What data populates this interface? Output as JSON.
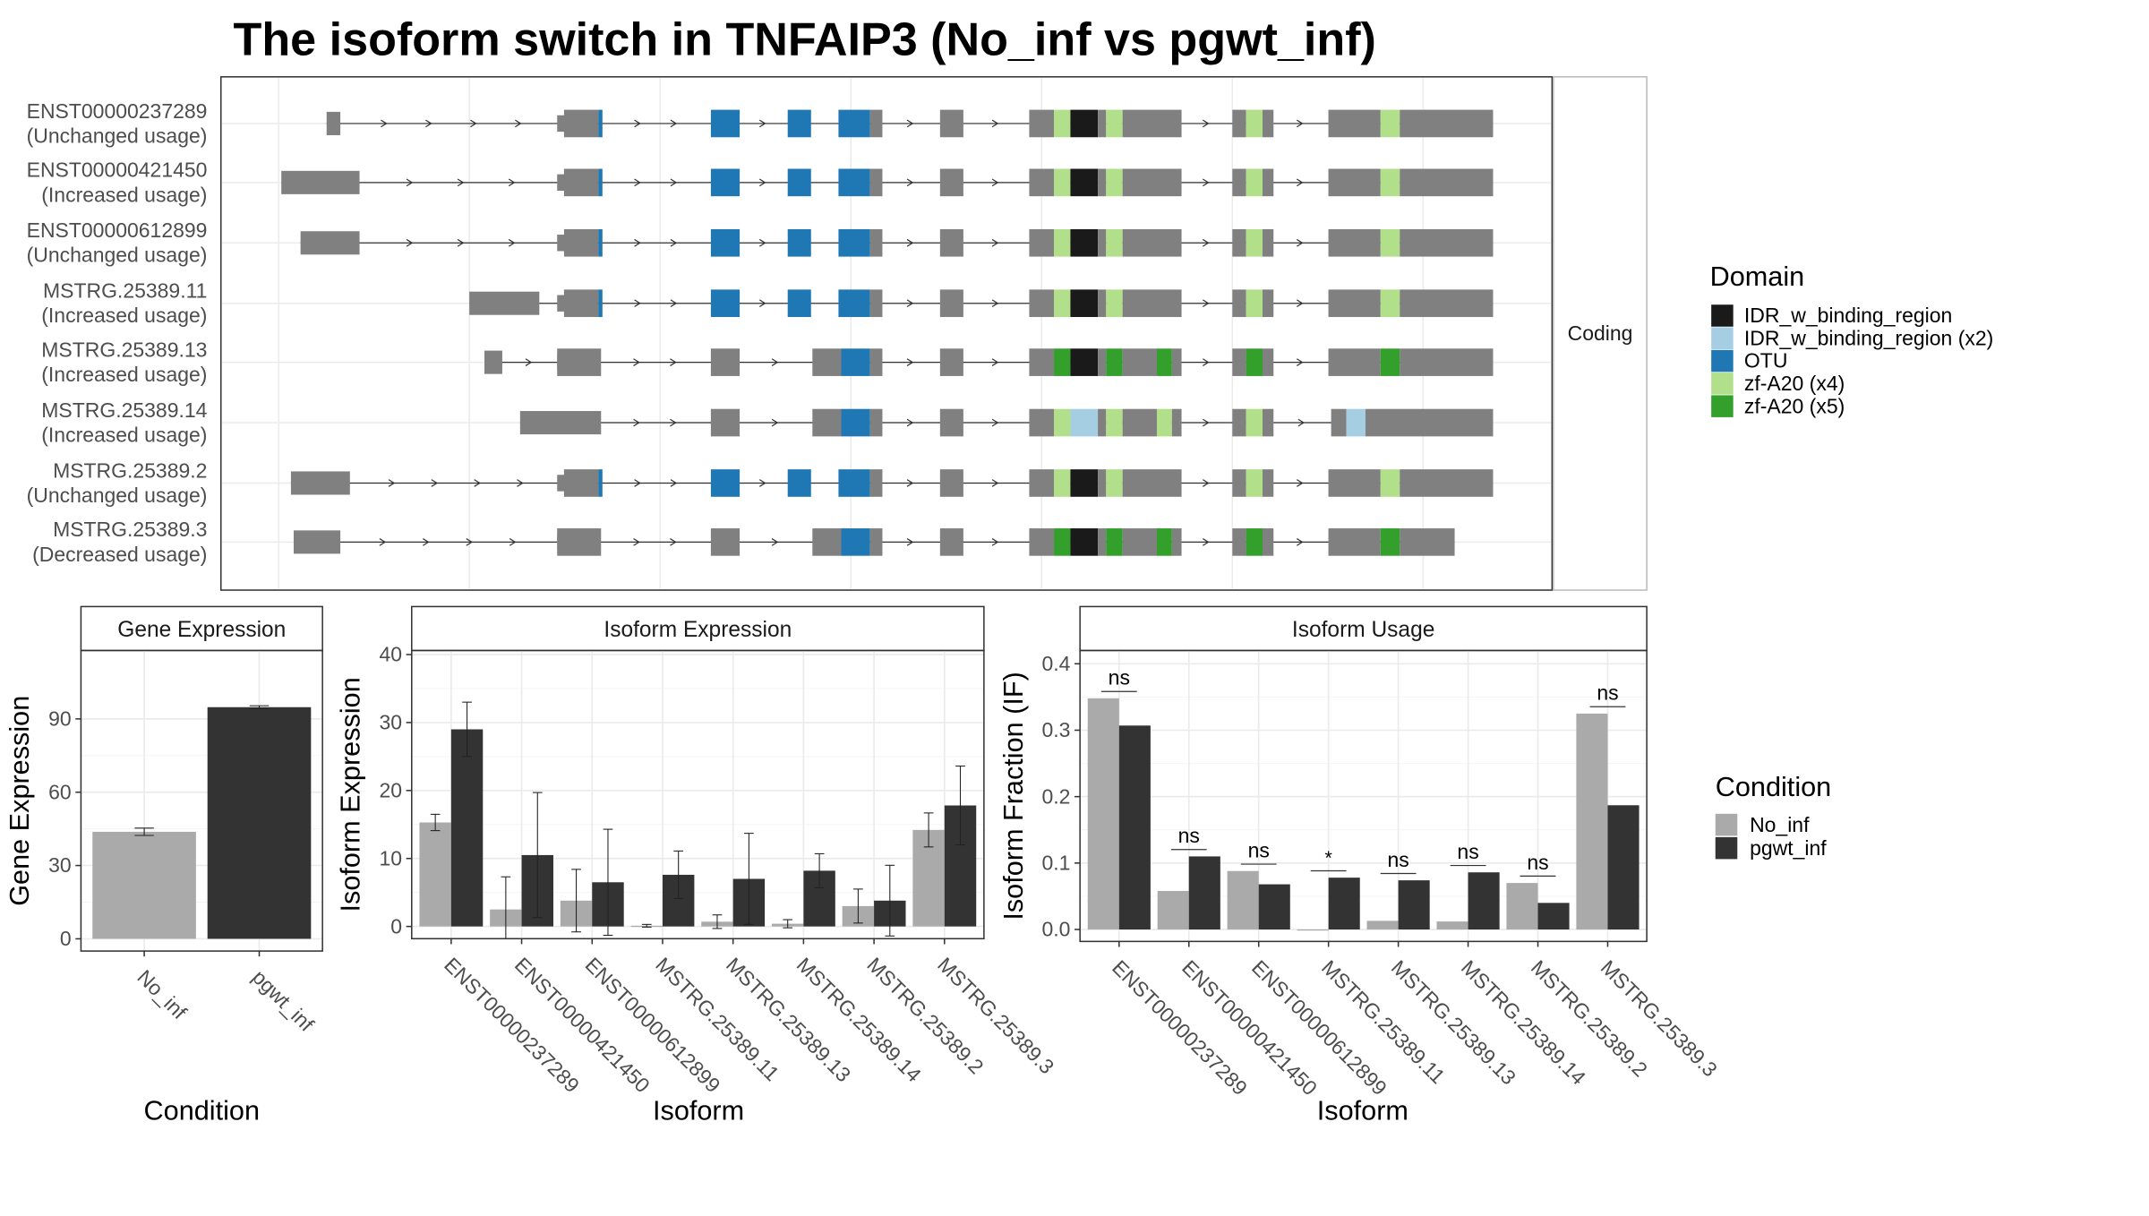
{
  "title": "The isoform switch in TNFAIP3 (No_inf vs pgwt_inf)",
  "colors": {
    "no_inf": "#AAAAAA",
    "pgwt_inf": "#333333",
    "exon": "#808080",
    "IDR_w_binding_region": "#1A1A1A",
    "IDR_w_binding_region_x2": "#A6CEE3",
    "OTU": "#1F78B4",
    "zf_A20_x4": "#B2DF8A",
    "zf_A20_x5": "#33A02C"
  },
  "structure": {
    "strip_label": "Coding",
    "isoforms": [
      {
        "id": "ENST00000237289",
        "usage": "(Unchanged usage)"
      },
      {
        "id": "ENST00000421450",
        "usage": "(Increased usage)"
      },
      {
        "id": "ENST00000612899",
        "usage": "(Unchanged usage)"
      },
      {
        "id": "MSTRG.25389.11",
        "usage": "(Increased usage)"
      },
      {
        "id": "MSTRG.25389.13",
        "usage": "(Increased usage)"
      },
      {
        "id": "MSTRG.25389.14",
        "usage": "(Increased usage)"
      },
      {
        "id": "MSTRG.25389.2",
        "usage": "(Unchanged usage)"
      },
      {
        "id": "MSTRG.25389.3",
        "usage": "(Decreased usage)"
      }
    ]
  },
  "legends": {
    "domain": {
      "title": "Domain",
      "items": [
        {
          "label": "IDR_w_binding_region",
          "color": "#1A1A1A"
        },
        {
          "label": "IDR_w_binding_region (x2)",
          "color": "#A6CEE3"
        },
        {
          "label": "OTU",
          "color": "#1F78B4"
        },
        {
          "label": "zf-A20 (x4)",
          "color": "#B2DF8A"
        },
        {
          "label": "zf-A20 (x5)",
          "color": "#33A02C"
        }
      ]
    },
    "condition": {
      "title": "Condition",
      "items": [
        {
          "label": "No_inf",
          "color": "#AAAAAA"
        },
        {
          "label": "pgwt_inf",
          "color": "#333333"
        }
      ]
    }
  },
  "chart_data": [
    {
      "type": "bar",
      "panel": "Gene Expression",
      "strip": "Gene Expression",
      "categories": [
        "No_inf",
        "pgwt_inf"
      ],
      "values": [
        43.8,
        94.8
      ],
      "errors": [
        1.5,
        0.6
      ],
      "xlabel": "Condition",
      "ylabel": "Gene Expression",
      "ylim": [
        -5,
        118
      ],
      "yticks": [
        0,
        30,
        60,
        90
      ]
    },
    {
      "type": "bar",
      "panel": "Isoform Expression",
      "strip": "Isoform Expression",
      "categories": [
        "ENST00000237289",
        "ENST00000421450",
        "ENST00000612899",
        "MSTRG.25389.11",
        "MSTRG.25389.13",
        "MSTRG.25389.14",
        "MSTRG.25389.2",
        "MSTRG.25389.3"
      ],
      "series": [
        {
          "name": "No_inf",
          "values": [
            15.3,
            2.5,
            3.8,
            0.1,
            0.7,
            0.4,
            3.0,
            14.2
          ],
          "errors": [
            1.2,
            4.8,
            4.6,
            0.2,
            1.0,
            0.6,
            2.5,
            2.5
          ]
        },
        {
          "name": "pgwt_inf",
          "values": [
            29.0,
            10.5,
            6.5,
            7.6,
            7.0,
            8.2,
            3.8,
            17.8
          ],
          "errors": [
            4.0,
            9.2,
            7.8,
            3.5,
            6.7,
            2.5,
            5.2,
            5.8
          ]
        }
      ],
      "xlabel": "Isoform",
      "ylabel": "Isoform Expression",
      "ylim": [
        -1.8,
        40.6
      ],
      "yticks": [
        0,
        10,
        20,
        30,
        40
      ]
    },
    {
      "type": "bar",
      "panel": "Isoform Usage",
      "strip": "Isoform Usage",
      "categories": [
        "ENST00000237289",
        "ENST00000421450",
        "ENST00000612899",
        "MSTRG.25389.11",
        "MSTRG.25389.13",
        "MSTRG.25389.14",
        "MSTRG.25389.2",
        "MSTRG.25389.3"
      ],
      "series": [
        {
          "name": "No_inf",
          "values": [
            0.348,
            0.058,
            0.088,
            0.0,
            0.013,
            0.012,
            0.07,
            0.325
          ]
        },
        {
          "name": "pgwt_inf",
          "values": [
            0.307,
            0.11,
            0.068,
            0.078,
            0.074,
            0.086,
            0.04,
            0.187
          ]
        }
      ],
      "significance": [
        "ns",
        "ns",
        "ns",
        "*",
        "ns",
        "ns",
        "ns",
        "ns"
      ],
      "xlabel": "Isoform",
      "ylabel": "Isoform Fraction (IF)",
      "ylim": [
        -0.018,
        0.42
      ],
      "yticks": [
        0.0,
        0.1,
        0.2,
        0.3,
        0.4
      ],
      "yticklabels": [
        "0.0",
        "0.1",
        "0.2",
        "0.3",
        "0.4"
      ]
    }
  ]
}
